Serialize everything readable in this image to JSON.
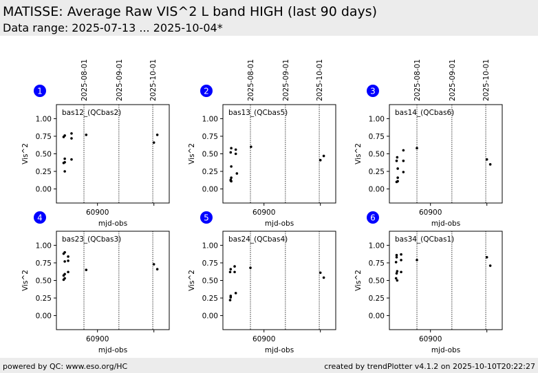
{
  "header": {
    "title": "MATISSE: Average Raw VIS^2 L band HIGH (last 90 days)",
    "data_range": "Data range: 2025-07-13 ... 2025-10-04*"
  },
  "footer": {
    "left": "powered by QC: www.eso.org/HC",
    "right": "created by trendPlotter v4.1.2 on 2025-10-10T20:22:27"
  },
  "colors": {
    "badge": "#0000ff",
    "marker": "#000000",
    "band": "#ececec"
  },
  "chart_data": {
    "type": "scatter",
    "xlabel": "mjd-obs",
    "ylabel": "Vis^2",
    "xlim": [
      60863.6,
      60963.6
    ],
    "ylim": [
      -0.2,
      1.2
    ],
    "xticks": [
      {
        "value": 60900,
        "label": "60900"
      },
      {
        "value": 60950,
        "label": ""
      }
    ],
    "yticks": [
      {
        "value": 0,
        "label": "0.00"
      },
      {
        "value": 0.25,
        "label": "0.25"
      },
      {
        "value": 0.5,
        "label": "0.50"
      },
      {
        "value": 0.75,
        "label": "0.75"
      },
      {
        "value": 1.0,
        "label": "1.00"
      }
    ],
    "date_markers": [
      {
        "mjd": 60888,
        "label": "2025-08-01"
      },
      {
        "mjd": 60919,
        "label": "2025-09-01"
      },
      {
        "mjd": 60949,
        "label": "2025-10-01"
      }
    ],
    "panels": [
      {
        "number": "1",
        "label": "bas12_(QCbas2)",
        "points": [
          [
            60870,
            0.74
          ],
          [
            60871,
            0.76
          ],
          [
            60870,
            0.37
          ],
          [
            60871,
            0.38
          ],
          [
            60871,
            0.43
          ],
          [
            60871,
            0.25
          ],
          [
            60877,
            0.79
          ],
          [
            60877,
            0.72
          ],
          [
            60877,
            0.42
          ],
          [
            60890,
            0.77
          ],
          [
            60950,
            0.66
          ],
          [
            60953,
            0.77
          ]
        ]
      },
      {
        "number": "2",
        "label": "bas13_(QCbas5)",
        "points": [
          [
            60871,
            0.58
          ],
          [
            60870.5,
            0.52
          ],
          [
            60871,
            0.32
          ],
          [
            60871,
            0.16
          ],
          [
            60870.5,
            0.13
          ],
          [
            60871,
            0.11
          ],
          [
            60870.5,
            0.12
          ],
          [
            60875,
            0.56
          ],
          [
            60875,
            0.5
          ],
          [
            60876,
            0.22
          ],
          [
            60888.5,
            0.6
          ],
          [
            60950,
            0.41
          ],
          [
            60953,
            0.47
          ]
        ]
      },
      {
        "number": "3",
        "label": "bas14_(QCbas6)",
        "points": [
          [
            60870.5,
            0.45
          ],
          [
            60870,
            0.4
          ],
          [
            60871,
            0.29
          ],
          [
            60871,
            0.16
          ],
          [
            60870,
            0.1
          ],
          [
            60871,
            0.11
          ],
          [
            60876,
            0.55
          ],
          [
            60876,
            0.4
          ],
          [
            60876,
            0.24
          ],
          [
            60888,
            0.58
          ],
          [
            60950,
            0.42
          ],
          [
            60953,
            0.35
          ]
        ]
      },
      {
        "number": "4",
        "label": "bas23_(QCbas3)",
        "points": [
          [
            60870,
            0.88
          ],
          [
            60871,
            0.9
          ],
          [
            60871,
            0.77
          ],
          [
            60870,
            0.57
          ],
          [
            60871,
            0.59
          ],
          [
            60870,
            0.51
          ],
          [
            60871,
            0.53
          ],
          [
            60874,
            0.84
          ],
          [
            60874,
            0.78
          ],
          [
            60874,
            0.62
          ],
          [
            60890,
            0.65
          ],
          [
            60950,
            0.73
          ],
          [
            60953,
            0.66
          ]
        ]
      },
      {
        "number": "5",
        "label": "bas24_(QCbas4)",
        "points": [
          [
            60870,
            0.62
          ],
          [
            60870.5,
            0.66
          ],
          [
            60870,
            0.22
          ],
          [
            60870.5,
            0.26
          ],
          [
            60870.5,
            0.28
          ],
          [
            60874,
            0.7
          ],
          [
            60874,
            0.62
          ],
          [
            60875,
            0.32
          ],
          [
            60888,
            0.68
          ],
          [
            60950,
            0.61
          ],
          [
            60953,
            0.54
          ]
        ]
      },
      {
        "number": "6",
        "label": "bas34_(QCbas1)",
        "points": [
          [
            60870,
            0.86
          ],
          [
            60870,
            0.83
          ],
          [
            60869.5,
            0.76
          ],
          [
            60870,
            0.6
          ],
          [
            60870.5,
            0.63
          ],
          [
            60869.5,
            0.53
          ],
          [
            60870.5,
            0.5
          ],
          [
            60874,
            0.87
          ],
          [
            60874,
            0.79
          ],
          [
            60874,
            0.62
          ],
          [
            60888,
            0.79
          ],
          [
            60950,
            0.83
          ],
          [
            60953,
            0.71
          ]
        ]
      }
    ]
  }
}
